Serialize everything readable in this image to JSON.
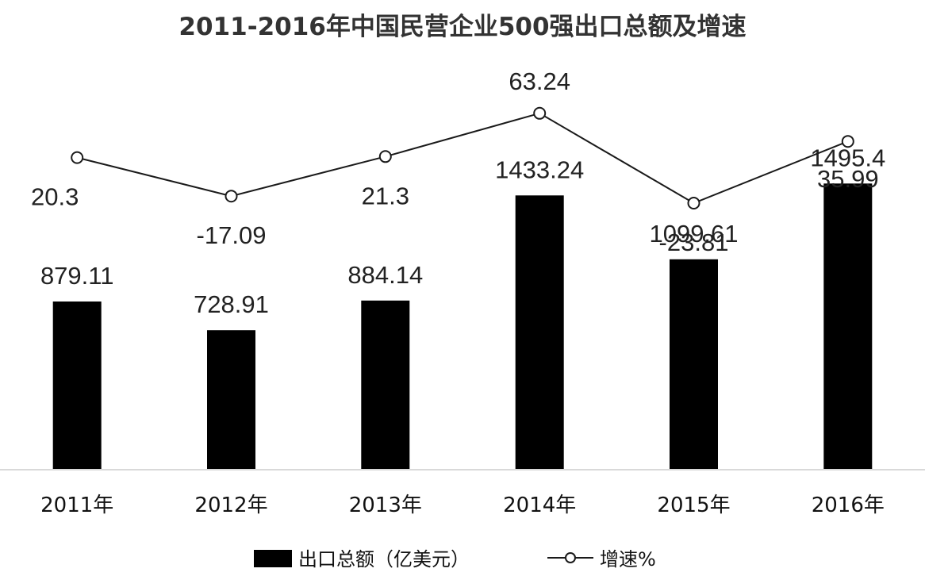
{
  "chart_data": {
    "type": "bar+line",
    "title": "2011-2016年中国民营企业500强出口总额及增速",
    "categories": [
      "2011年",
      "2012年",
      "2013年",
      "2014年",
      "2015年",
      "2016年"
    ],
    "series": [
      {
        "name": "出口总额（亿美元）",
        "type": "bar",
        "values": [
          879.11,
          728.91,
          884.14,
          1433.24,
          1099.61,
          1495.4
        ],
        "labels": [
          "879.11",
          "728.91",
          "884.14",
          "1433.24",
          "1099.61",
          "1495.4"
        ]
      },
      {
        "name": "增速%",
        "type": "line",
        "values": [
          20.3,
          -17.09,
          21.3,
          63.24,
          -23.81,
          35.99
        ],
        "labels": [
          "20.3",
          "-17.09",
          "21.3",
          "63.24",
          "-23.81",
          "35.99"
        ]
      }
    ],
    "bar_ylim": [
      0,
      1700
    ],
    "line_ylim": [
      -150,
      100
    ],
    "grid": false,
    "legend_position": "bottom",
    "colors": {
      "bar": "#000000",
      "line": "#1a1a1a",
      "marker_fill": "#ffffff",
      "axis": "#d9d9d9"
    }
  }
}
